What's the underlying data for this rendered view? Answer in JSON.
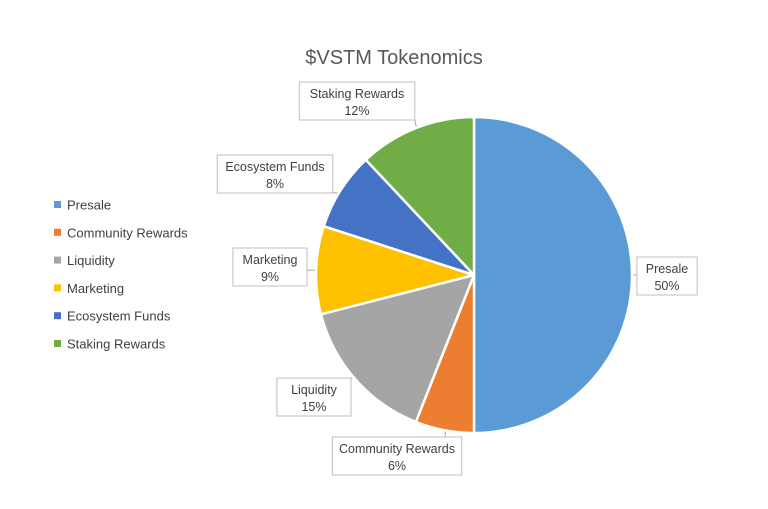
{
  "chart_data": {
    "type": "pie",
    "title": "$VSTM Tokenomics",
    "legend_position": "left",
    "slices": [
      {
        "name": "Presale",
        "value": 50,
        "label": "50%",
        "color": "#5B9BD5"
      },
      {
        "name": "Community Rewards",
        "value": 6,
        "label": "6%",
        "color": "#ED7D31"
      },
      {
        "name": "Liquidity",
        "value": 15,
        "label": "15%",
        "color": "#A5A5A5"
      },
      {
        "name": "Marketing",
        "value": 9,
        "label": "9%",
        "color": "#FFC000"
      },
      {
        "name": "Ecosystem Funds",
        "value": 8,
        "label": "8%",
        "color": "#4472C4"
      },
      {
        "name": "Staking Rewards",
        "value": 12,
        "label": "12%",
        "color": "#70AD47"
      }
    ]
  }
}
